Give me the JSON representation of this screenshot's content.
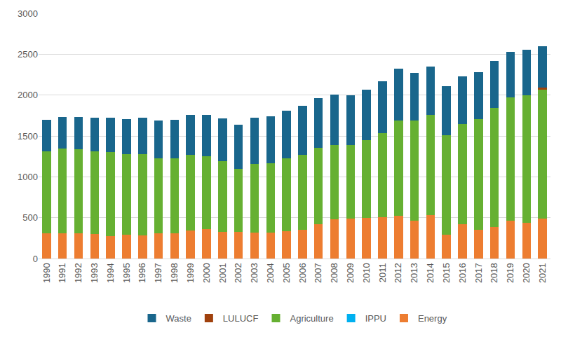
{
  "chart_data": {
    "type": "bar",
    "stacked": true,
    "categories": [
      "1990",
      "1991",
      "1992",
      "1993",
      "1994",
      "1995",
      "1996",
      "1997",
      "1998",
      "1999",
      "2000",
      "2001",
      "2002",
      "2003",
      "2004",
      "2005",
      "2006",
      "2007",
      "2008",
      "2009",
      "2010",
      "2011",
      "2012",
      "2013",
      "2014",
      "2015",
      "2016",
      "2017",
      "2018",
      "2019",
      "2020",
      "2021"
    ],
    "series": [
      {
        "name": "Energy",
        "color": "#ED7D31",
        "values": [
          310,
          305,
          305,
          300,
          275,
          290,
          285,
          305,
          310,
          340,
          360,
          330,
          325,
          320,
          320,
          335,
          350,
          420,
          480,
          490,
          495,
          510,
          525,
          460,
          530,
          295,
          420,
          355,
          385,
          465,
          440,
          490
        ]
      },
      {
        "name": "IPPU",
        "color": "#00B0F0",
        "values": [
          0,
          0,
          0,
          0,
          0,
          0,
          0,
          0,
          0,
          0,
          0,
          0,
          0,
          0,
          0,
          0,
          0,
          0,
          0,
          0,
          0,
          0,
          0,
          0,
          0,
          0,
          0,
          0,
          0,
          0,
          0,
          0
        ]
      },
      {
        "name": "Agriculture",
        "color": "#66B032",
        "values": [
          1005,
          1040,
          1030,
          1015,
          1025,
          985,
          995,
          925,
          920,
          925,
          890,
          865,
          775,
          840,
          850,
          890,
          915,
          935,
          910,
          895,
          950,
          1025,
          1165,
          1230,
          1230,
          1215,
          1225,
          1355,
          1460,
          1510,
          1560,
          1575
        ]
      },
      {
        "name": "LULUCF",
        "color": "#A0410D",
        "values": [
          0,
          0,
          0,
          0,
          0,
          0,
          0,
          0,
          0,
          0,
          0,
          0,
          0,
          0,
          0,
          0,
          0,
          0,
          0,
          0,
          0,
          0,
          0,
          0,
          0,
          0,
          0,
          0,
          0,
          0,
          0,
          30
        ]
      },
      {
        "name": "Waste",
        "color": "#19668C",
        "values": [
          385,
          390,
          395,
          410,
          420,
          435,
          440,
          460,
          470,
          490,
          505,
          520,
          540,
          560,
          570,
          585,
          605,
          610,
          620,
          615,
          625,
          635,
          630,
          580,
          585,
          600,
          580,
          570,
          575,
          555,
          555,
          500
        ]
      }
    ],
    "ylim": [
      0,
      3000
    ],
    "yticks": [
      0,
      500,
      1000,
      1500,
      2000,
      2500,
      3000
    ],
    "grid": true,
    "legend": "bottom"
  }
}
